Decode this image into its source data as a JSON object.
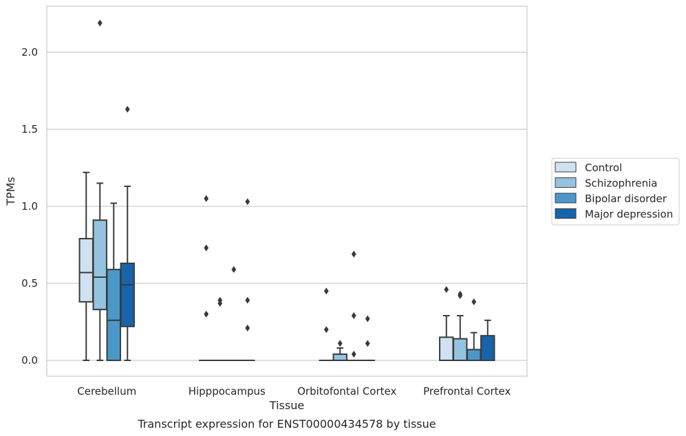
{
  "chart_data": {
    "type": "box",
    "title": "",
    "caption": "Transcript expression for ENST00000434578 by tissue",
    "xlabel": "Tissue",
    "ylabel": "TPMs",
    "ylim": [
      -0.11,
      2.32
    ],
    "yticks": [
      "0.0",
      "0.5",
      "1.0",
      "1.5",
      "2.0"
    ],
    "ytick_values": [
      0,
      0.5,
      1.0,
      1.5,
      2.0
    ],
    "grid": "horizontal",
    "legend_position": "right",
    "categories": [
      "Cerebellum",
      "Hipppocampus",
      "Orbitofontal Cortex",
      "Prefrontal Cortex"
    ],
    "series": [
      {
        "name": "Control",
        "color": "#d0e1f2",
        "boxes": [
          {
            "whisker_low": 0.0,
            "q1": 0.38,
            "median": 0.57,
            "q3": 0.79,
            "whisker_high": 1.22,
            "outliers": []
          },
          {
            "whisker_low": 0.0,
            "q1": 0.0,
            "median": 0.0,
            "q3": 0.0,
            "whisker_high": 0.0,
            "outliers": [
              1.05,
              0.73,
              0.3
            ]
          },
          {
            "whisker_low": 0.0,
            "q1": 0.0,
            "median": 0.0,
            "q3": 0.0,
            "whisker_high": 0.0,
            "outliers": [
              0.45,
              0.2
            ]
          },
          {
            "whisker_low": 0.0,
            "q1": 0.0,
            "median": 0.0,
            "q3": 0.15,
            "whisker_high": 0.29,
            "outliers": [
              0.46
            ]
          }
        ]
      },
      {
        "name": "Schizophrenia",
        "color": "#94c4df",
        "boxes": [
          {
            "whisker_low": 0.0,
            "q1": 0.33,
            "median": 0.54,
            "q3": 0.91,
            "whisker_high": 1.15,
            "outliers": [
              2.19
            ]
          },
          {
            "whisker_low": 0.0,
            "q1": 0.0,
            "median": 0.0,
            "q3": 0.0,
            "whisker_high": 0.0,
            "outliers": [
              0.39,
              0.37
            ]
          },
          {
            "whisker_low": 0.0,
            "q1": 0.0,
            "median": 0.0,
            "q3": 0.04,
            "whisker_high": 0.08,
            "outliers": [
              0.11
            ]
          },
          {
            "whisker_low": 0.0,
            "q1": 0.0,
            "median": 0.0,
            "q3": 0.14,
            "whisker_high": 0.29,
            "outliers": [
              0.43,
              0.42
            ]
          }
        ]
      },
      {
        "name": "Bipolar disorder",
        "color": "#4a98c9",
        "boxes": [
          {
            "whisker_low": 0.0,
            "q1": 0.0,
            "median": 0.26,
            "q3": 0.59,
            "whisker_high": 1.02,
            "outliers": []
          },
          {
            "whisker_low": 0.0,
            "q1": 0.0,
            "median": 0.0,
            "q3": 0.0,
            "whisker_high": 0.0,
            "outliers": [
              0.59
            ]
          },
          {
            "whisker_low": 0.0,
            "q1": 0.0,
            "median": 0.0,
            "q3": 0.0,
            "whisker_high": 0.0,
            "outliers": [
              0.69,
              0.29,
              0.04
            ]
          },
          {
            "whisker_low": 0.0,
            "q1": 0.0,
            "median": 0.0,
            "q3": 0.07,
            "whisker_high": 0.18,
            "outliers": [
              0.38
            ]
          }
        ]
      },
      {
        "name": "Major depression",
        "color": "#1764ab",
        "boxes": [
          {
            "whisker_low": 0.0,
            "q1": 0.22,
            "median": 0.49,
            "q3": 0.63,
            "whisker_high": 1.13,
            "outliers": [
              1.63
            ]
          },
          {
            "whisker_low": 0.0,
            "q1": 0.0,
            "median": 0.0,
            "q3": 0.0,
            "whisker_high": 0.0,
            "outliers": [
              1.03,
              0.39,
              0.21
            ]
          },
          {
            "whisker_low": 0.0,
            "q1": 0.0,
            "median": 0.0,
            "q3": 0.0,
            "whisker_high": 0.0,
            "outliers": [
              0.27,
              0.11
            ]
          },
          {
            "whisker_low": 0.0,
            "q1": 0.0,
            "median": 0.0,
            "q3": 0.16,
            "whisker_high": 0.26,
            "outliers": []
          }
        ]
      }
    ]
  }
}
